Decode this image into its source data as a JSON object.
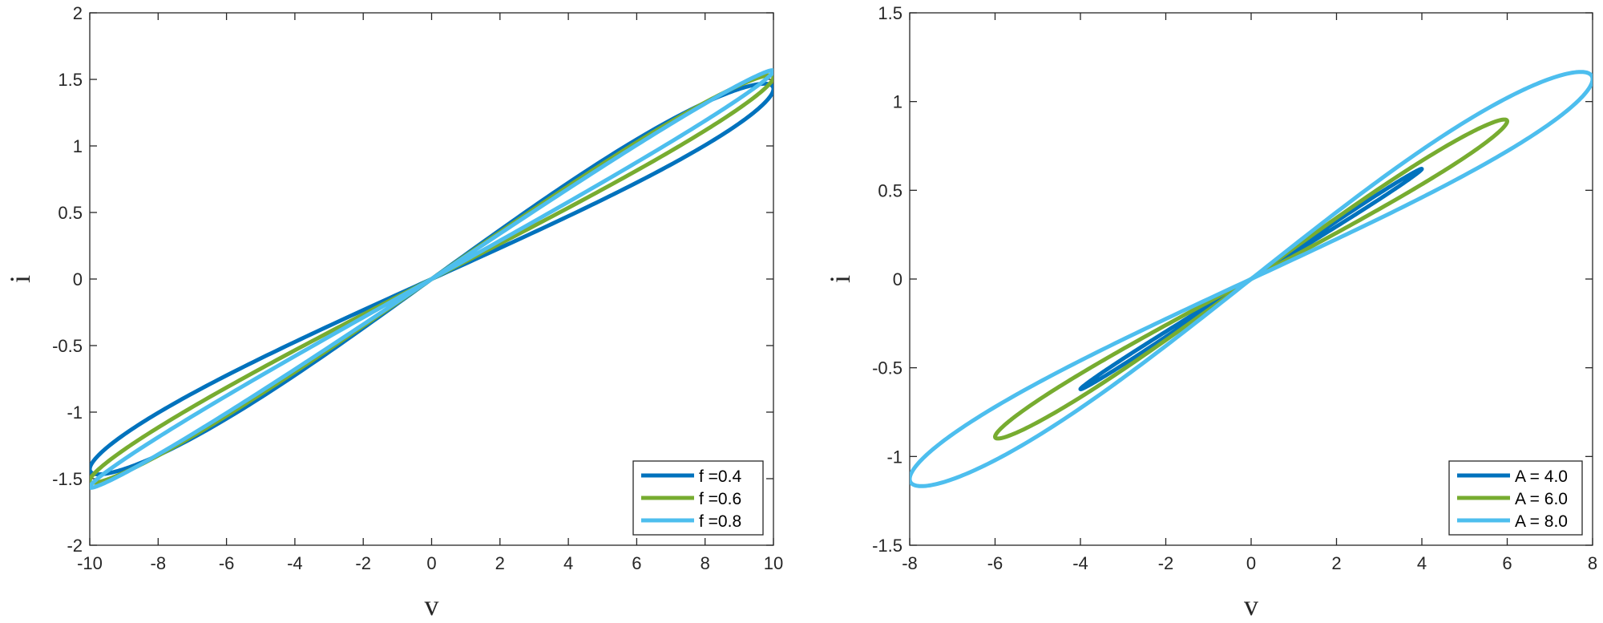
{
  "chart_data": [
    {
      "type": "line",
      "title": "",
      "xlabel": "v",
      "ylabel": "i",
      "xlim": [
        -10,
        10
      ],
      "ylim": [
        -2,
        2
      ],
      "xticks": [
        -10,
        -8,
        -6,
        -4,
        -2,
        0,
        2,
        4,
        6,
        8,
        10
      ],
      "yticks": [
        -2,
        -1.5,
        -1,
        -0.5,
        0,
        0.5,
        1,
        1.5,
        2
      ],
      "legend_position": "bottom-right",
      "curve_model": "parametric: v = A*sin(t); i = v / (a + b*cos(t)), t in [0, 2pi]",
      "series": [
        {
          "name": "f =0.4",
          "color": "#0072BD",
          "amplitude": 10,
          "a": 7.0,
          "b": 1.6
        },
        {
          "name": "f =0.6",
          "color": "#77AC30",
          "amplitude": 10,
          "a": 6.6,
          "b": 0.95
        },
        {
          "name": "f =0.8",
          "color": "#4DBEEE",
          "amplitude": 10,
          "a": 6.4,
          "b": 0.55
        }
      ]
    },
    {
      "type": "line",
      "title": "",
      "xlabel": "v",
      "ylabel": "i",
      "xlim": [
        -8,
        8
      ],
      "ylim": [
        -1.5,
        1.5
      ],
      "xticks": [
        -8,
        -6,
        -4,
        -2,
        0,
        2,
        4,
        6,
        8
      ],
      "yticks": [
        -1.5,
        -1,
        -0.5,
        0,
        0.5,
        1,
        1.5
      ],
      "legend_position": "bottom-right",
      "curve_model": "parametric: v = A*sin(t); i = v / (a + b*cos(t)), t in [0, 2pi]",
      "series": [
        {
          "name": "A = 4.0",
          "color": "#0072BD",
          "amplitude": 4,
          "a": 6.45,
          "b": 0.35
        },
        {
          "name": "A = 6.0",
          "color": "#77AC30",
          "amplitude": 6,
          "a": 6.75,
          "b": 1.0
        },
        {
          "name": "A = 8.0",
          "color": "#4DBEEE",
          "amplitude": 8,
          "a": 7.1,
          "b": 1.85
        }
      ]
    }
  ]
}
